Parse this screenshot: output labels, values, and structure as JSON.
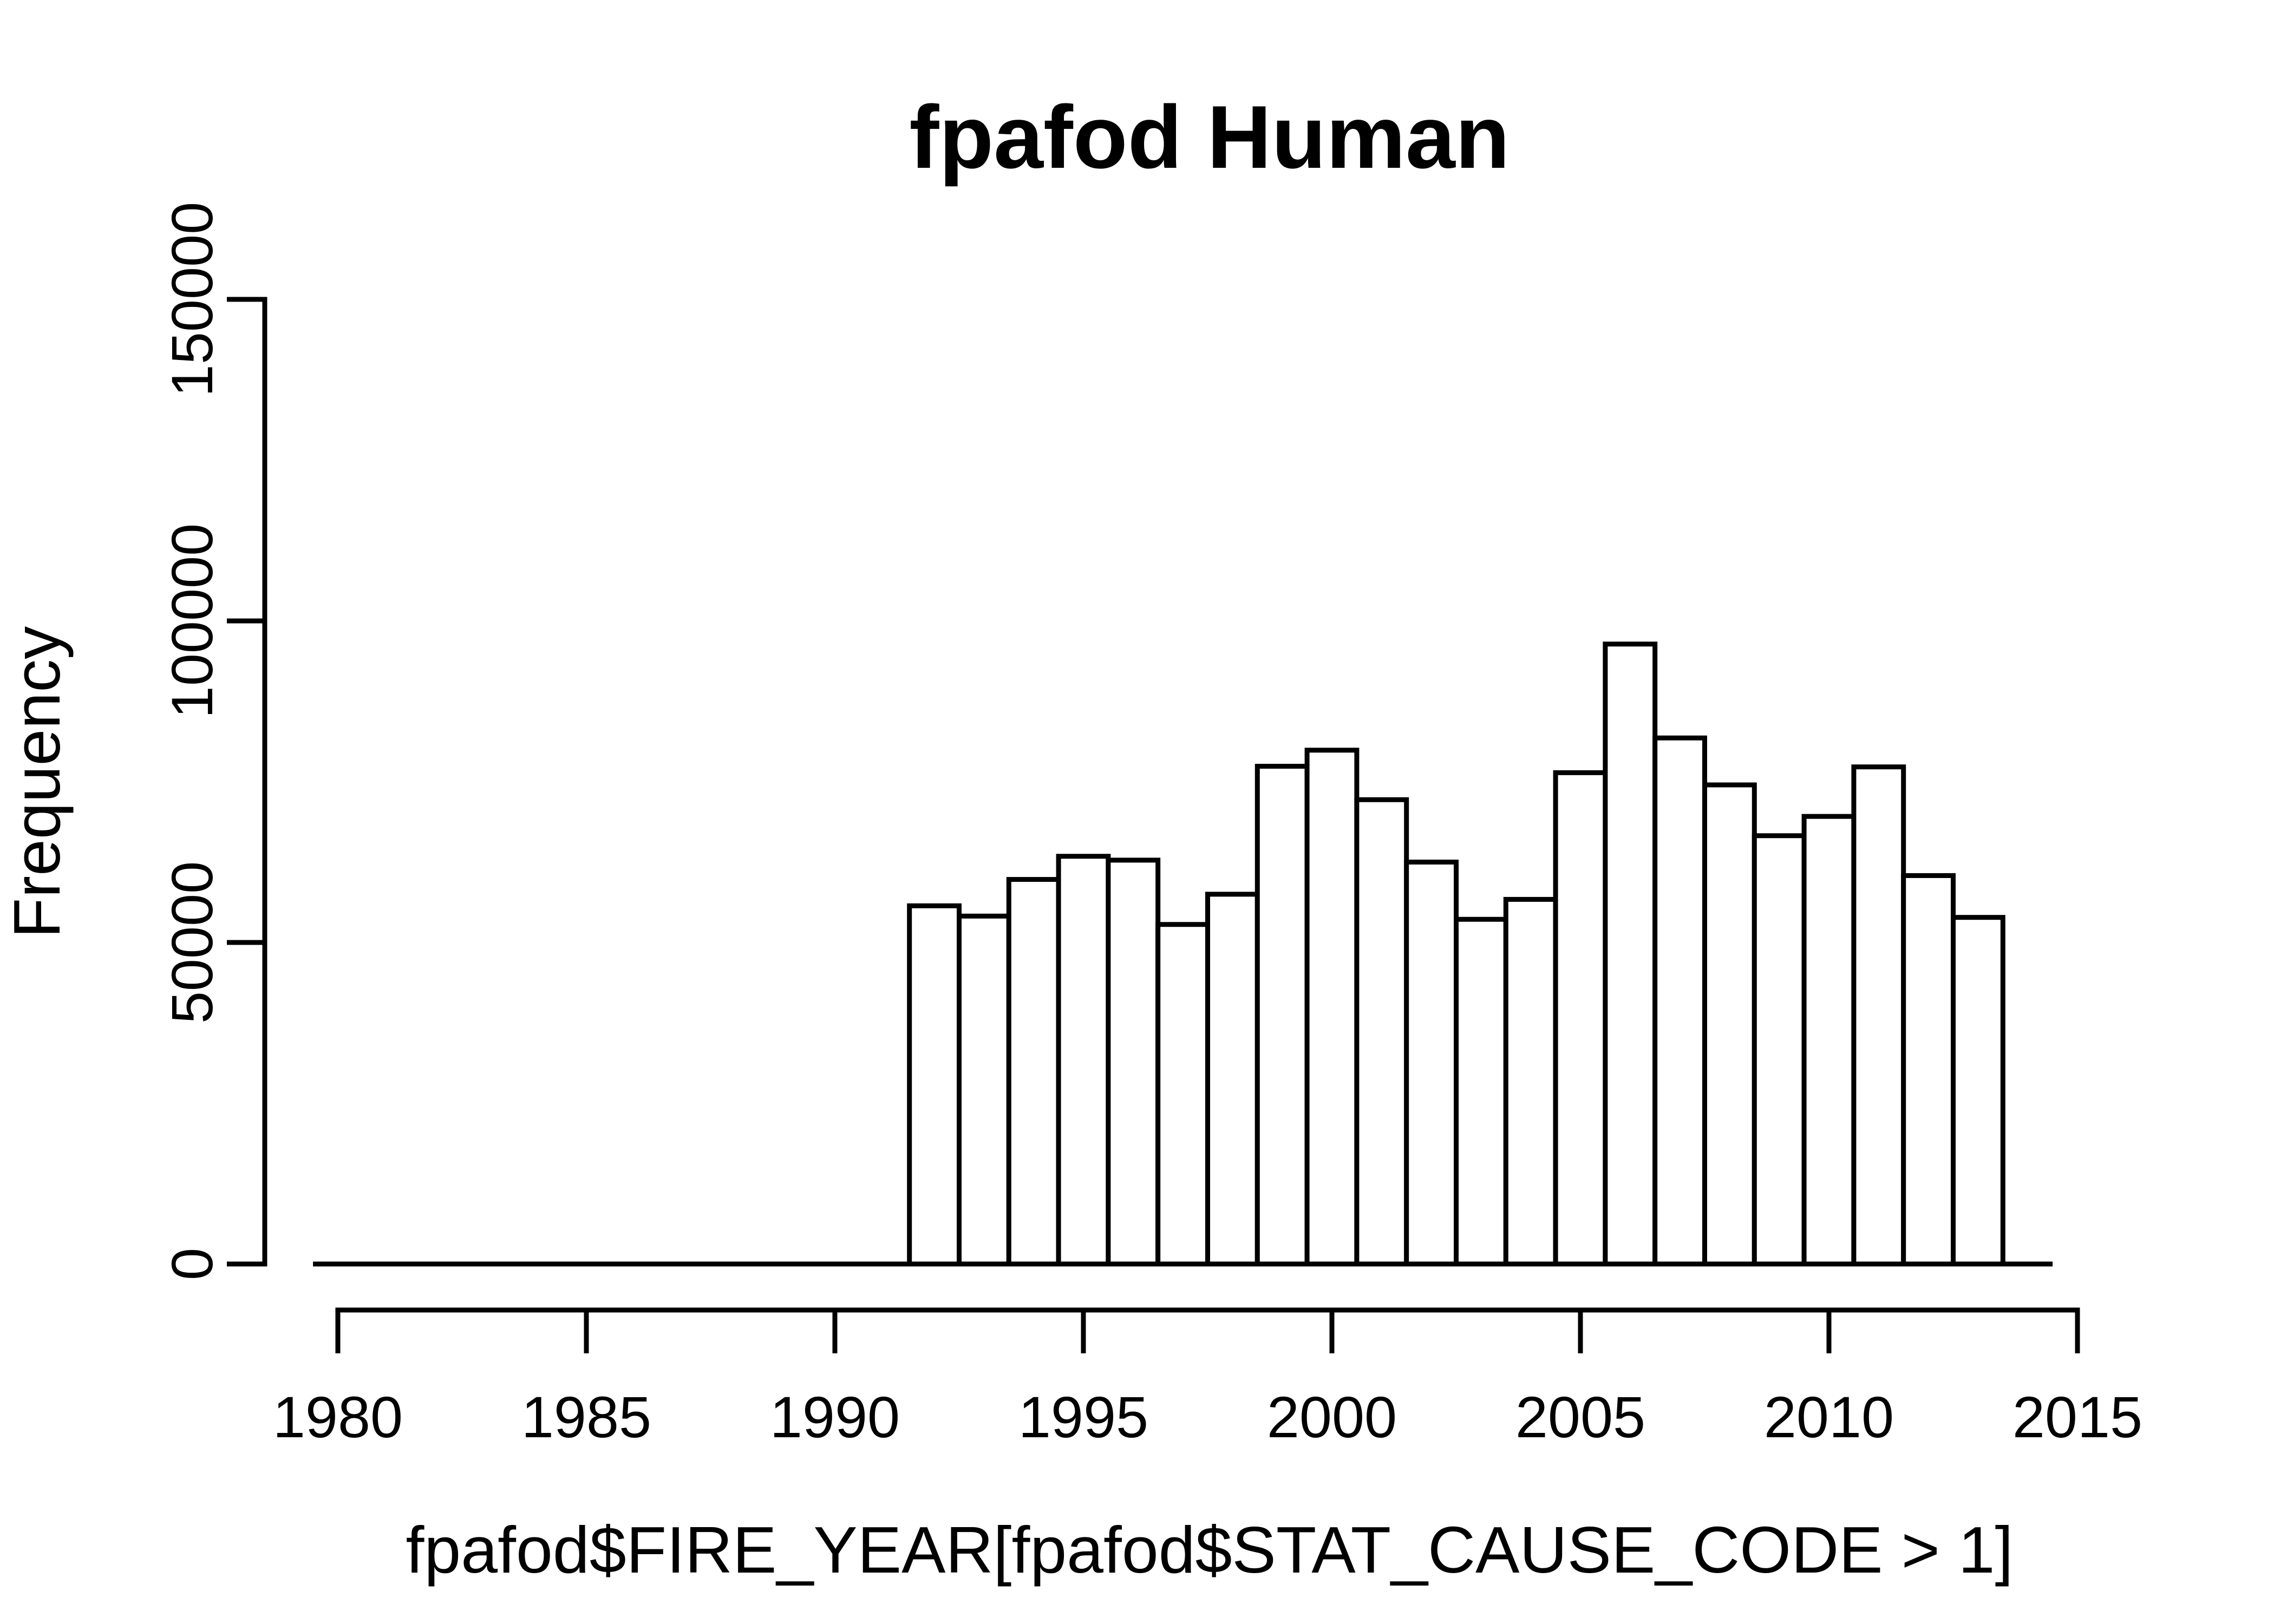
{
  "title": "fpafod Human",
  "colors": {
    "foreground": "#000000",
    "background": "#ffffff",
    "bar_fill": "#ffffff",
    "bar_stroke": "#000000"
  },
  "chart_data": {
    "type": "bar",
    "subtype": "histogram",
    "title": "fpafod Human",
    "xlabel": "fpafod$FIRE_YEAR[fpafod$STAT_CAUSE_CODE > 1]",
    "ylabel": "Frequency",
    "xlim": [
      1979.5,
      2014.5
    ],
    "ylim": [
      0,
      150000
    ],
    "bin_width": 1,
    "grid": false,
    "legend": "none",
    "x_ticks": [
      1980,
      1985,
      1990,
      1995,
      2000,
      2005,
      2010,
      2015
    ],
    "y_ticks": [
      0,
      50000,
      100000,
      150000
    ],
    "y_tick_labels": [
      "0",
      "50000",
      "100000",
      "150000"
    ],
    "x_tick_labels": [
      "1980",
      "1985",
      "1990",
      "1995",
      "2000",
      "2005",
      "2010",
      "2015"
    ],
    "categories": [
      1992,
      1993,
      1994,
      1995,
      1996,
      1997,
      1998,
      1999,
      2000,
      2001,
      2002,
      2003,
      2004,
      2005,
      2006,
      2007,
      2008,
      2009,
      2010,
      2011,
      2012,
      2013
    ],
    "values": [
      55700,
      54100,
      59800,
      63400,
      62800,
      52800,
      57500,
      77400,
      79900,
      72200,
      62500,
      53600,
      56700,
      76400,
      96400,
      81800,
      74500,
      66600,
      69600,
      77300,
      60400,
      53900
    ],
    "empty_bin_years": [
      1980,
      1981,
      1982,
      1983,
      1984,
      1985,
      1986,
      1987,
      1988,
      1989,
      1990,
      1991,
      2014
    ]
  }
}
